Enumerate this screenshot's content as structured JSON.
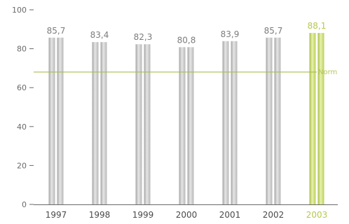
{
  "chart_data": {
    "type": "bar",
    "categories": [
      "1997",
      "1998",
      "1999",
      "2000",
      "2001",
      "2002",
      "2003"
    ],
    "values": [
      85.7,
      83.4,
      82.3,
      80.8,
      83.9,
      85.7,
      88.1
    ],
    "value_labels": [
      "85,7",
      "83,4",
      "82,3",
      "80,8",
      "83,9",
      "85,7",
      "88,1"
    ],
    "highlight_category": "2003",
    "ylim": [
      0,
      100
    ],
    "yticks": [
      "0",
      "20",
      "40",
      "60",
      "80",
      "100"
    ],
    "reference_line": {
      "label": "Norm",
      "value": 68
    },
    "grid": false,
    "colors": {
      "bar": "#c6c6c6",
      "bar_highlight": "#cfe07a",
      "reference": "#a9bd4f"
    }
  }
}
